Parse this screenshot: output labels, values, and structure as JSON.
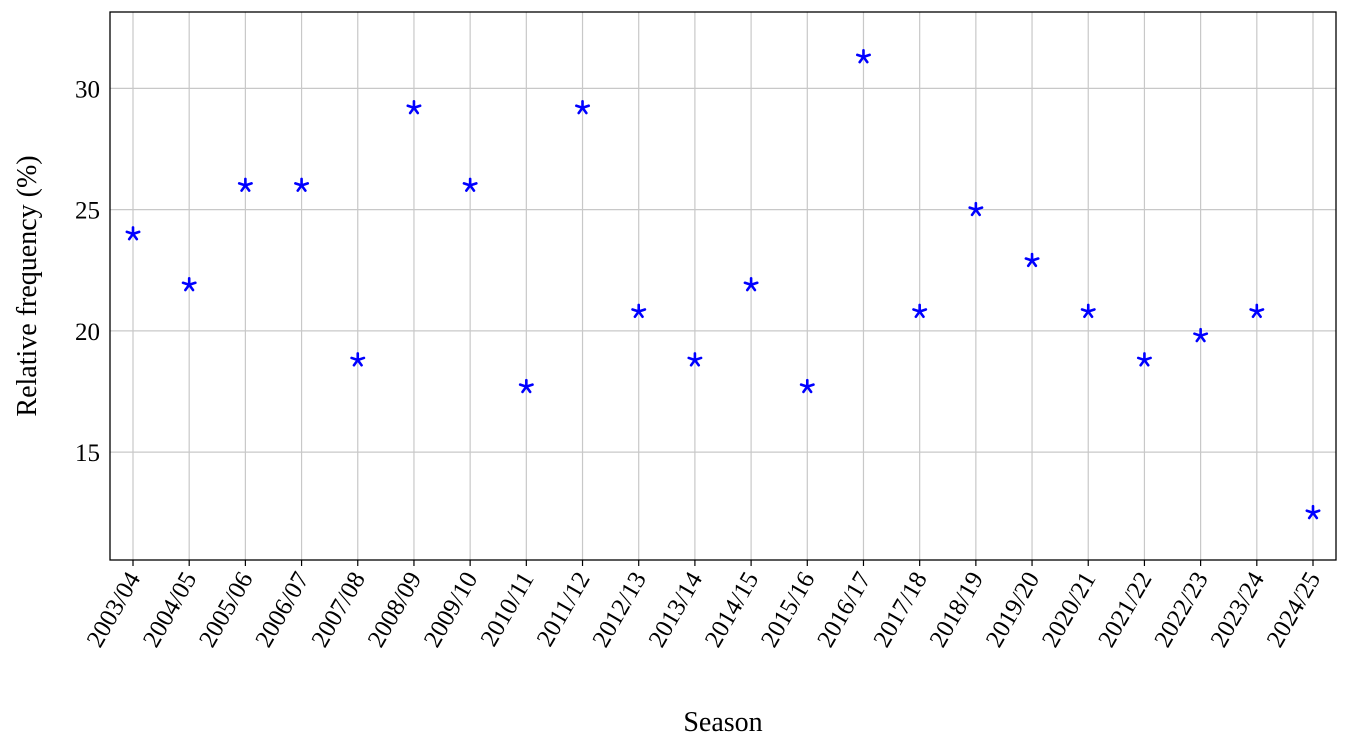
{
  "chart_data": {
    "type": "scatter",
    "title": "",
    "xlabel": "Season",
    "ylabel": "Relative frequency (%)",
    "categories": [
      "2003/04",
      "2004/05",
      "2005/06",
      "2006/07",
      "2007/08",
      "2008/09",
      "2009/10",
      "2010/11",
      "2011/12",
      "2012/13",
      "2013/14",
      "2014/15",
      "2015/16",
      "2016/17",
      "2017/18",
      "2018/19",
      "2019/20",
      "2020/21",
      "2021/22",
      "2022/23",
      "2023/24",
      "2024/25"
    ],
    "series": [
      {
        "name": "Relative frequency",
        "marker": "asterisk",
        "color": "#0000ff",
        "values": [
          24.0,
          21.9,
          26.0,
          26.0,
          18.8,
          29.2,
          26.0,
          17.7,
          29.2,
          20.8,
          18.8,
          21.9,
          17.7,
          31.3,
          20.8,
          25.0,
          22.9,
          20.8,
          18.8,
          19.8,
          20.8,
          12.5
        ]
      }
    ],
    "yticks": [
      15,
      20,
      25,
      30
    ],
    "ylim": [
      10.55,
      33.15
    ],
    "grid": true,
    "legend": "none"
  }
}
